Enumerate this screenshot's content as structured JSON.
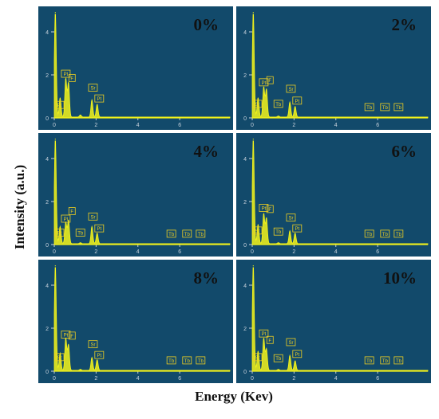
{
  "figure": {
    "ylabel": "Intensity (a.u.)",
    "xlabel": "Energy (Kev)"
  },
  "chart_data": {
    "type": "line",
    "panel_style": {
      "background": "#124a6b",
      "spectrum_color": "#f5f51a",
      "tag_color": "#f0d020",
      "tick_color": "#c8d2dc"
    },
    "xlim": [
      0,
      8.4
    ],
    "ylim": [
      0,
      5
    ],
    "x_ticks": [
      0,
      2,
      4,
      6
    ],
    "y_ticks": [
      0,
      2,
      4
    ],
    "panels": [
      {
        "title": "0%",
        "peaks": [
          {
            "e": 0.05,
            "h": 4.9
          },
          {
            "e": 0.28,
            "h": 0.9
          },
          {
            "e": 0.55,
            "h": 1.8
          },
          {
            "e": 0.68,
            "h": 1.6
          },
          {
            "e": 1.25,
            "h": 0.1
          },
          {
            "e": 1.8,
            "h": 0.8
          },
          {
            "e": 2.05,
            "h": 0.6
          }
        ],
        "labels": [
          {
            "text": "Pt",
            "e": 0.25,
            "h": 0.4
          },
          {
            "text": "Pt",
            "e": 0.55,
            "h": 1.85
          },
          {
            "text": "F",
            "e": 0.85,
            "h": 1.65
          },
          {
            "text": "Sr",
            "e": 1.85,
            "h": 1.2
          },
          {
            "text": "Pt",
            "e": 2.15,
            "h": 0.7
          }
        ]
      },
      {
        "title": "2%",
        "peaks": [
          {
            "e": 0.05,
            "h": 4.9
          },
          {
            "e": 0.28,
            "h": 0.9
          },
          {
            "e": 0.55,
            "h": 1.4
          },
          {
            "e": 0.68,
            "h": 1.3
          },
          {
            "e": 1.25,
            "h": 0.05
          },
          {
            "e": 1.8,
            "h": 0.7
          },
          {
            "e": 2.05,
            "h": 0.5
          }
        ],
        "labels": [
          {
            "text": "Sr",
            "e": 0.25,
            "h": 0.45
          },
          {
            "text": "Pt",
            "e": 0.55,
            "h": 1.45
          },
          {
            "text": "F",
            "e": 0.85,
            "h": 1.55
          },
          {
            "text": "Tb",
            "e": 1.25,
            "h": 0.45
          },
          {
            "text": "Sr",
            "e": 1.85,
            "h": 1.15
          },
          {
            "text": "Pt",
            "e": 2.15,
            "h": 0.6
          },
          {
            "text": "Tb",
            "e": 5.6,
            "h": 0.3
          },
          {
            "text": "Tb",
            "e": 6.35,
            "h": 0.3
          },
          {
            "text": "Tb",
            "e": 7.0,
            "h": 0.3
          }
        ]
      },
      {
        "title": "4%",
        "peaks": [
          {
            "e": 0.05,
            "h": 4.9
          },
          {
            "e": 0.28,
            "h": 0.8
          },
          {
            "e": 0.55,
            "h": 1.0
          },
          {
            "e": 0.68,
            "h": 1.1
          },
          {
            "e": 1.25,
            "h": 0.05
          },
          {
            "e": 1.8,
            "h": 0.8
          },
          {
            "e": 2.05,
            "h": 0.5
          }
        ],
        "labels": [
          {
            "text": "Pt",
            "e": 0.25,
            "h": 0.35
          },
          {
            "text": "Pt",
            "e": 0.55,
            "h": 1.0
          },
          {
            "text": "F",
            "e": 0.85,
            "h": 1.35
          },
          {
            "text": "Tb",
            "e": 1.25,
            "h": 0.35
          },
          {
            "text": "Sr",
            "e": 1.85,
            "h": 1.1
          },
          {
            "text": "Pt",
            "e": 2.15,
            "h": 0.55
          },
          {
            "text": "Tb",
            "e": 5.6,
            "h": 0.3
          },
          {
            "text": "Tb",
            "e": 6.35,
            "h": 0.3
          },
          {
            "text": "Tb",
            "e": 7.0,
            "h": 0.3
          }
        ]
      },
      {
        "title": "6%",
        "peaks": [
          {
            "e": 0.05,
            "h": 4.9
          },
          {
            "e": 0.28,
            "h": 0.9
          },
          {
            "e": 0.55,
            "h": 1.4
          },
          {
            "e": 0.68,
            "h": 1.2
          },
          {
            "e": 1.25,
            "h": 0.05
          },
          {
            "e": 1.8,
            "h": 0.6
          },
          {
            "e": 2.05,
            "h": 0.5
          }
        ],
        "labels": [
          {
            "text": "Sr",
            "e": 0.25,
            "h": 0.45
          },
          {
            "text": "Pt",
            "e": 0.55,
            "h": 1.5
          },
          {
            "text": "F",
            "e": 0.85,
            "h": 1.45
          },
          {
            "text": "Tb",
            "e": 1.25,
            "h": 0.4
          },
          {
            "text": "Sr",
            "e": 1.85,
            "h": 1.05
          },
          {
            "text": "Pt",
            "e": 2.15,
            "h": 0.55
          },
          {
            "text": "Tb",
            "e": 5.6,
            "h": 0.3
          },
          {
            "text": "Tb",
            "e": 6.35,
            "h": 0.3
          },
          {
            "text": "Tb",
            "e": 7.0,
            "h": 0.3
          }
        ]
      },
      {
        "title": "8%",
        "peaks": [
          {
            "e": 0.05,
            "h": 4.9
          },
          {
            "e": 0.28,
            "h": 0.8
          },
          {
            "e": 0.55,
            "h": 1.5
          },
          {
            "e": 0.68,
            "h": 1.2
          },
          {
            "e": 1.25,
            "h": 0.05
          },
          {
            "e": 1.8,
            "h": 0.6
          },
          {
            "e": 2.05,
            "h": 0.5
          }
        ],
        "labels": [
          {
            "text": "Sr",
            "e": 0.25,
            "h": 0.45
          },
          {
            "text": "Pt",
            "e": 0.55,
            "h": 1.5
          },
          {
            "text": "F",
            "e": 0.85,
            "h": 1.45
          },
          {
            "text": "Sr",
            "e": 1.85,
            "h": 1.05
          },
          {
            "text": "Pt",
            "e": 2.15,
            "h": 0.55
          },
          {
            "text": "Tb",
            "e": 5.6,
            "h": 0.3
          },
          {
            "text": "Tb",
            "e": 6.35,
            "h": 0.3
          },
          {
            "text": "Tb",
            "e": 7.0,
            "h": 0.3
          }
        ]
      },
      {
        "title": "10%",
        "peaks": [
          {
            "e": 0.05,
            "h": 4.9
          },
          {
            "e": 0.28,
            "h": 0.9
          },
          {
            "e": 0.55,
            "h": 1.5
          },
          {
            "e": 0.68,
            "h": 1.0
          },
          {
            "e": 1.25,
            "h": 0.05
          },
          {
            "e": 1.8,
            "h": 0.7
          },
          {
            "e": 2.05,
            "h": 0.45
          }
        ],
        "labels": [
          {
            "text": "Sr",
            "e": 0.25,
            "h": 0.45
          },
          {
            "text": "Pt",
            "e": 0.55,
            "h": 1.55
          },
          {
            "text": "F",
            "e": 0.85,
            "h": 1.25
          },
          {
            "text": "Tb",
            "e": 1.25,
            "h": 0.4
          },
          {
            "text": "Sr",
            "e": 1.85,
            "h": 1.15
          },
          {
            "text": "Pt",
            "e": 2.15,
            "h": 0.6
          },
          {
            "text": "Tb",
            "e": 5.6,
            "h": 0.3
          },
          {
            "text": "Tb",
            "e": 6.35,
            "h": 0.3
          },
          {
            "text": "Tb",
            "e": 7.0,
            "h": 0.3
          }
        ]
      }
    ]
  }
}
